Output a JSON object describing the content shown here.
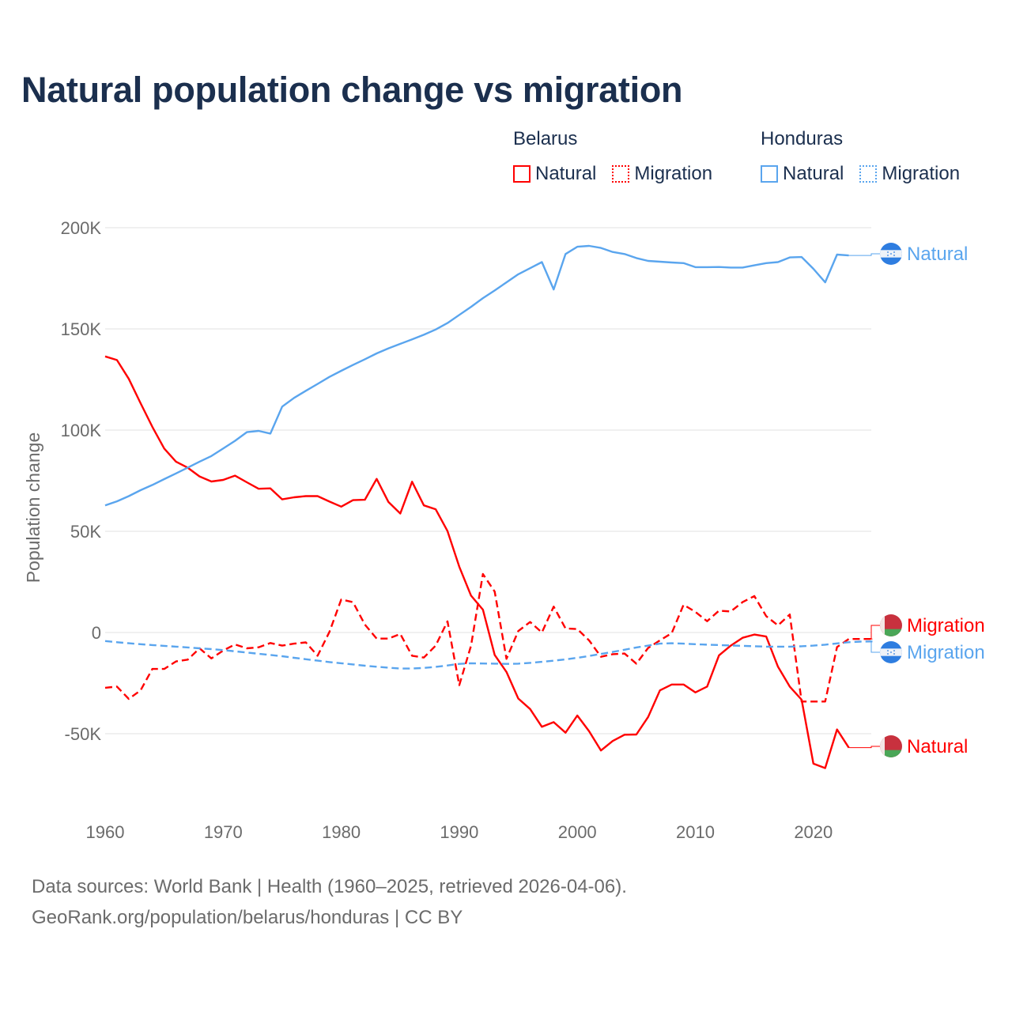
{
  "title": "Natural population change vs migration",
  "legend": {
    "groups": [
      {
        "name": "Belarus",
        "color": "#ff0000",
        "items": [
          "Natural",
          "Migration"
        ]
      },
      {
        "name": "Honduras",
        "color": "#5aa5ee",
        "items": [
          "Natural",
          "Migration"
        ]
      }
    ]
  },
  "footer": {
    "line1": "Data sources: World Bank | Health (1960–2025, retrieved 2026-04-06).",
    "line2": "GeoRank.org/population/belarus/honduras | CC BY"
  },
  "chart_data": {
    "type": "line",
    "title": "Natural population change vs migration",
    "xlabel": "",
    "ylabel": "Population change",
    "xlim": [
      1960,
      2025
    ],
    "ylim": [
      -70000,
      200000
    ],
    "xticks": [
      1960,
      1970,
      1980,
      1990,
      2000,
      2010,
      2020
    ],
    "yticks": [
      {
        "value": 200000,
        "label": "200K"
      },
      {
        "value": 150000,
        "label": "150K"
      },
      {
        "value": 100000,
        "label": "100K"
      },
      {
        "value": 50000,
        "label": "50K"
      },
      {
        "value": 0,
        "label": "0"
      },
      {
        "value": -50000,
        "label": "-50K"
      }
    ],
    "grid": true,
    "legend_position": "top-right",
    "x_start": 1960,
    "series": [
      {
        "name": "Belarus Natural",
        "country": "Belarus",
        "kind": "Natural",
        "color": "#ff0000",
        "dash": "solid",
        "end_label": "Natural",
        "values": [
          136400,
          134600,
          125300,
          113300,
          101600,
          90900,
          84400,
          81400,
          77100,
          74600,
          75400,
          77500,
          74200,
          71000,
          71200,
          65800,
          66800,
          67400,
          67400,
          64700,
          62200,
          65400,
          65600,
          75900,
          64500,
          58800,
          74500,
          62800,
          60900,
          50100,
          32500,
          18200,
          11300,
          -11100,
          -19500,
          -32600,
          -37800,
          -46600,
          -44300,
          -49500,
          -41000,
          -48800,
          -58300,
          -53600,
          -50500,
          -50400,
          -41700,
          -28600,
          -25700,
          -25700,
          -29600,
          -26700,
          -11300,
          -6500,
          -2600,
          -1000,
          -2000,
          -16900,
          -26700,
          -33200,
          -64800,
          -67000,
          -47900,
          -56900
        ]
      },
      {
        "name": "Belarus Migration",
        "country": "Belarus",
        "kind": "Migration",
        "color": "#ff0000",
        "dash": "dashed",
        "end_label": "Migration",
        "values": [
          -27300,
          -26700,
          -32800,
          -28600,
          -18000,
          -18000,
          -14300,
          -13400,
          -7800,
          -12800,
          -8900,
          -5900,
          -7800,
          -7300,
          -5200,
          -6500,
          -5500,
          -4900,
          -11500,
          300,
          16300,
          15000,
          3900,
          -3000,
          -3000,
          -700,
          -11500,
          -12400,
          -6500,
          5500,
          -26000,
          -6500,
          28900,
          20200,
          -13000,
          700,
          5200,
          0,
          12800,
          2000,
          1700,
          -3900,
          -12000,
          -10700,
          -10400,
          -15400,
          -7600,
          -3900,
          -300,
          13700,
          10200,
          5600,
          10800,
          10400,
          15000,
          18000,
          8100,
          3500,
          8900,
          -34100,
          -34100,
          -34100,
          -7200,
          -3200,
          -3200,
          -3200
        ]
      },
      {
        "name": "Honduras Natural",
        "country": "Honduras",
        "kind": "Natural",
        "color": "#5aa5ee",
        "dash": "solid",
        "end_label": "Natural",
        "values": [
          62800,
          64800,
          67400,
          70300,
          72900,
          75800,
          78600,
          81500,
          84400,
          87200,
          90900,
          94700,
          99000,
          99600,
          98300,
          111600,
          115900,
          119400,
          122800,
          126300,
          129300,
          132200,
          135000,
          137900,
          140400,
          142600,
          144800,
          147100,
          149700,
          152900,
          156900,
          160900,
          165200,
          169000,
          173000,
          177000,
          180000,
          183000,
          169500,
          187000,
          190600,
          191000,
          190000,
          188000,
          187000,
          185000,
          183600,
          183200,
          182800,
          182500,
          180500,
          180500,
          180600,
          180300,
          180300,
          181400,
          182500,
          183000,
          185300,
          185500,
          179700,
          173000,
          186700,
          186300
        ]
      },
      {
        "name": "Honduras Migration",
        "country": "Honduras",
        "kind": "Migration",
        "color": "#5aa5ee",
        "dash": "dashed",
        "end_label": "Migration",
        "values": [
          -4200,
          -4800,
          -5300,
          -5800,
          -6200,
          -6600,
          -7000,
          -7400,
          -7800,
          -8200,
          -8700,
          -9300,
          -9900,
          -10500,
          -11100,
          -11700,
          -12500,
          -13200,
          -13900,
          -14600,
          -15200,
          -15800,
          -16400,
          -16900,
          -17400,
          -17800,
          -17800,
          -17500,
          -17000,
          -16300,
          -15500,
          -15200,
          -15300,
          -15400,
          -15500,
          -15400,
          -15000,
          -14500,
          -13900,
          -13300,
          -12500,
          -11600,
          -10600,
          -9600,
          -8500,
          -7400,
          -6500,
          -5500,
          -5300,
          -5500,
          -5800,
          -6000,
          -6200,
          -6400,
          -6600,
          -6800,
          -7000,
          -7000,
          -7000,
          -6800,
          -6500,
          -6000,
          -5400,
          -4800,
          -4500,
          -4400
        ]
      }
    ]
  }
}
